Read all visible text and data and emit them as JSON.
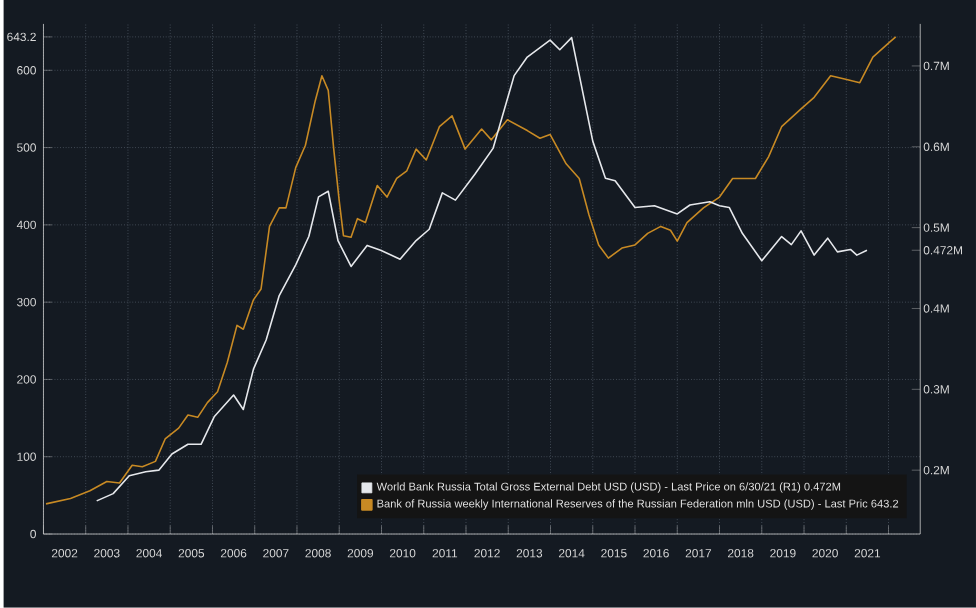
{
  "chart_data": {
    "type": "line",
    "xlim": [
      2002,
      2022.75
    ],
    "xticks": [
      {
        "value": 2002,
        "label": null
      },
      {
        "value": 2003,
        "label": null
      },
      {
        "value": 2004,
        "label": null
      },
      {
        "value": 2005,
        "label": null
      },
      {
        "value": 2006,
        "label": null
      },
      {
        "value": 2007,
        "label": null
      },
      {
        "value": 2008,
        "label": null
      },
      {
        "value": 2009,
        "label": null
      },
      {
        "value": 2010,
        "label": null
      },
      {
        "value": 2011,
        "label": null
      },
      {
        "value": 2012,
        "label": null
      },
      {
        "value": 2013,
        "label": null
      },
      {
        "value": 2014,
        "label": null
      },
      {
        "value": 2015,
        "label": null
      },
      {
        "value": 2016,
        "label": null
      },
      {
        "value": 2017,
        "label": null
      },
      {
        "value": 2018,
        "label": null
      },
      {
        "value": 2019,
        "label": null
      },
      {
        "value": 2020,
        "label": null
      },
      {
        "value": 2021,
        "label": null
      },
      {
        "value": 2022,
        "label": null
      },
      {
        "value": 2002.5,
        "label": "2002"
      },
      {
        "value": 2003.5,
        "label": "2003"
      },
      {
        "value": 2004.5,
        "label": "2004"
      },
      {
        "value": 2005.5,
        "label": "2005"
      },
      {
        "value": 2006.5,
        "label": "2006"
      },
      {
        "value": 2007.5,
        "label": "2007"
      },
      {
        "value": 2008.5,
        "label": "2008"
      },
      {
        "value": 2009.5,
        "label": "2009"
      },
      {
        "value": 2010.5,
        "label": "2010"
      },
      {
        "value": 2011.5,
        "label": "2011"
      },
      {
        "value": 2012.5,
        "label": "2012"
      },
      {
        "value": 2013.5,
        "label": "2013"
      },
      {
        "value": 2014.5,
        "label": "2014"
      },
      {
        "value": 2015.5,
        "label": "2015"
      },
      {
        "value": 2016.5,
        "label": "2016"
      },
      {
        "value": 2017.5,
        "label": "2017"
      },
      {
        "value": 2018.5,
        "label": "2018"
      },
      {
        "value": 2019.5,
        "label": "2019"
      },
      {
        "value": 2020.5,
        "label": "2020"
      },
      {
        "value": 2021.5,
        "label": "2021"
      }
    ],
    "ylim": [
      0,
      660
    ],
    "yticks": [
      0,
      100,
      200,
      300,
      400,
      500,
      600,
      643.2
    ],
    "y2lim": [
      0.121,
      0.752
    ],
    "y2ticks": [
      {
        "value": 0.2,
        "label": "0.2M"
      },
      {
        "value": 0.3,
        "label": "0.3M"
      },
      {
        "value": 0.4,
        "label": "0.4M"
      },
      {
        "value": 0.472,
        "label": "0.472M"
      },
      {
        "value": 0.5,
        "label": "0.5M"
      },
      {
        "value": 0.6,
        "label": "0.6M"
      },
      {
        "value": 0.7,
        "label": "0.7M"
      }
    ],
    "grid": true,
    "legend": "bottom right",
    "series": [
      {
        "name": "World Bank Russia Total Gross External Debt USD (USD) - Last Price on 6/30/21 (R1)   0.472M",
        "color": "#e6e8ec",
        "axis": "y2",
        "x": [
          2003.26,
          2003.65,
          2004.03,
          2004.42,
          2004.73,
          2005.04,
          2005.42,
          2005.73,
          2006.04,
          2006.5,
          2006.73,
          2006.97,
          2007.27,
          2007.58,
          2007.97,
          2008.28,
          2008.51,
          2008.74,
          2008.97,
          2009.28,
          2009.66,
          2009.98,
          2010.44,
          2010.82,
          2011.13,
          2011.44,
          2011.75,
          2012.21,
          2012.64,
          2013.14,
          2013.45,
          2013.99,
          2014.22,
          2014.5,
          2015.0,
          2015.3,
          2015.53,
          2016.0,
          2016.46,
          2017.0,
          2017.3,
          2017.77,
          2018.0,
          2018.23,
          2018.54,
          2019.0,
          2019.47,
          2019.7,
          2019.93,
          2020.24,
          2020.56,
          2020.79,
          2021.1,
          2021.25,
          2021.49
        ],
        "values": [
          0.162,
          0.171,
          0.193,
          0.198,
          0.2,
          0.22,
          0.232,
          0.232,
          0.266,
          0.293,
          0.275,
          0.325,
          0.361,
          0.416,
          0.454,
          0.489,
          0.538,
          0.545,
          0.484,
          0.452,
          0.478,
          0.472,
          0.461,
          0.484,
          0.498,
          0.543,
          0.534,
          0.566,
          0.598,
          0.688,
          0.711,
          0.732,
          0.72,
          0.735,
          0.607,
          0.561,
          0.558,
          0.525,
          0.527,
          0.517,
          0.528,
          0.532,
          0.527,
          0.525,
          0.493,
          0.459,
          0.489,
          0.479,
          0.496,
          0.466,
          0.487,
          0.47,
          0.473,
          0.466,
          0.472
        ]
      },
      {
        "name": "Bank of Russia weekly International Reserves of the Russian Federation mln USD (USD) - Last Pric 643.2",
        "color": "#c88a24",
        "axis": "y",
        "x": [
          2002.06,
          2002.64,
          2003.1,
          2003.5,
          2003.8,
          2004.1,
          2004.34,
          2004.65,
          2004.88,
          2005.2,
          2005.42,
          2005.65,
          2005.88,
          2006.12,
          2006.35,
          2006.58,
          2006.73,
          2006.97,
          2007.15,
          2007.35,
          2007.58,
          2007.74,
          2007.97,
          2008.2,
          2008.43,
          2008.59,
          2008.74,
          2008.87,
          2009.0,
          2009.1,
          2009.28,
          2009.43,
          2009.62,
          2009.9,
          2010.13,
          2010.36,
          2010.6,
          2010.82,
          2011.06,
          2011.37,
          2011.67,
          2011.98,
          2012.37,
          2012.6,
          2012.98,
          2013.45,
          2013.75,
          2013.99,
          2014.37,
          2014.68,
          2014.91,
          2015.14,
          2015.37,
          2015.69,
          2016.0,
          2016.3,
          2016.61,
          2016.84,
          2017.0,
          2017.23,
          2017.62,
          2018.0,
          2018.31,
          2018.85,
          2019.16,
          2019.47,
          2019.93,
          2020.24,
          2020.63,
          2021.01,
          2021.32,
          2021.63,
          2022.02,
          2022.17
        ],
        "values": [
          39,
          46,
          56,
          68,
          66,
          89,
          87,
          94,
          123,
          137,
          154,
          151,
          170,
          184,
          222,
          270,
          265,
          303,
          317,
          398,
          422,
          422,
          474,
          503,
          560,
          593,
          574,
          498,
          431,
          386,
          384,
          408,
          403,
          451,
          436,
          460,
          470,
          498,
          484,
          527,
          541,
          498,
          524,
          510,
          536,
          522,
          512,
          517,
          479,
          460,
          413,
          374,
          357,
          370,
          374,
          389,
          398,
          393,
          379,
          403,
          422,
          436,
          460,
          460,
          488,
          527,
          550,
          565,
          593,
          588,
          584,
          617,
          636,
          643.2
        ]
      }
    ]
  }
}
